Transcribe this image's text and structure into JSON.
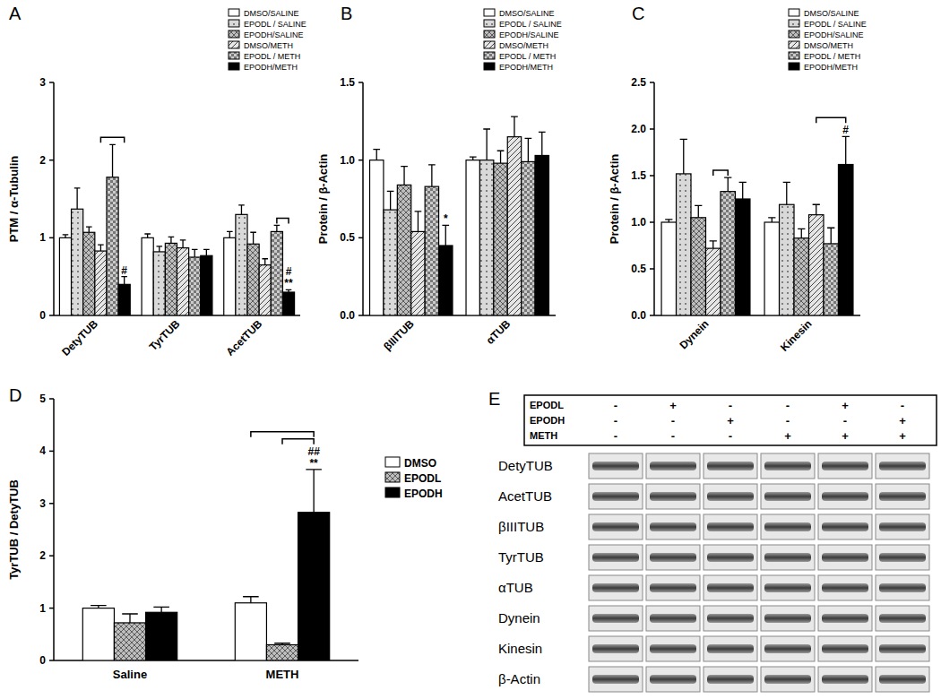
{
  "chart_data": [
    {
      "type": "bar",
      "title": "A",
      "y_label": "PTM / α-Tubulin",
      "categories": [
        "DetyTUB",
        "TyrTUB",
        "AcetTUB"
      ],
      "series": [
        {
          "name": "DMSO/SALINE",
          "color": "#ffffff",
          "values": [
            1.0,
            1.0,
            1.0
          ],
          "errors": [
            0.04,
            0.05,
            0.08
          ]
        },
        {
          "name": "EPODL / SALINE",
          "color": "#d9d9d9",
          "values": [
            1.37,
            0.82,
            1.3
          ],
          "errors": [
            0.27,
            0.07,
            0.12
          ]
        },
        {
          "name": "EPODH/SALINE",
          "color": "#bdbdbd",
          "values": [
            1.07,
            0.93,
            0.92
          ],
          "errors": [
            0.07,
            0.08,
            0.15
          ]
        },
        {
          "name": "DMSO/METH",
          "color": "#e6e6e6",
          "values": [
            0.83,
            0.87,
            0.65
          ],
          "errors": [
            0.08,
            0.1,
            0.08
          ]
        },
        {
          "name": "EPODL / METH",
          "color": "#cccccc",
          "values": [
            1.78,
            0.75,
            1.08
          ],
          "errors": [
            0.42,
            0.1,
            0.08
          ]
        },
        {
          "name": "EPODH/METH",
          "color": "#000000",
          "values": [
            0.4,
            0.77,
            0.3
          ],
          "errors": [
            0.1,
            0.08,
            0.03
          ]
        }
      ],
      "ylim": [
        0,
        3
      ],
      "yticks": [
        0,
        1,
        2,
        3
      ],
      "legend": "upper right",
      "annotations": [
        {
          "text": "#",
          "category": "DetyTUB",
          "series": "EPODH/METH"
        },
        {
          "text": "**",
          "category": "AcetTUB",
          "series": "EPODH/METH"
        },
        {
          "text": "#",
          "category": "AcetTUB",
          "series": "EPODH/METH"
        }
      ],
      "brackets": [
        {
          "category": "DetyTUB",
          "from": "DMSO/METH",
          "to": "EPODH/METH"
        },
        {
          "category": "AcetTUB",
          "from": "EPODL / METH",
          "to": "EPODH/METH"
        }
      ]
    },
    {
      "type": "bar",
      "title": "B",
      "y_label": "Protein / β-Actin",
      "categories": [
        "βIIITUB",
        "αTUB"
      ],
      "series": [
        {
          "name": "DMSO/SALINE",
          "color": "#ffffff",
          "values": [
            1.0,
            1.0
          ],
          "errors": [
            0.07,
            0.02
          ]
        },
        {
          "name": "EPODL / SALINE",
          "color": "#d9d9d9",
          "values": [
            0.68,
            1.0
          ],
          "errors": [
            0.12,
            0.2
          ]
        },
        {
          "name": "EPODH/SALINE",
          "color": "#bdbdbd",
          "values": [
            0.84,
            0.98
          ],
          "errors": [
            0.12,
            0.08
          ]
        },
        {
          "name": "DMSO/METH",
          "color": "#e6e6e6",
          "values": [
            0.54,
            1.15
          ],
          "errors": [
            0.13,
            0.13
          ]
        },
        {
          "name": "EPODL / METH",
          "color": "#cccccc",
          "values": [
            0.83,
            0.99
          ],
          "errors": [
            0.14,
            0.15
          ]
        },
        {
          "name": "EPODH/METH",
          "color": "#000000",
          "values": [
            0.45,
            1.03
          ],
          "errors": [
            0.13,
            0.15
          ]
        }
      ],
      "ylim": [
        0,
        1.5
      ],
      "yticks": [
        {
          "value": 0,
          "label": "0.0"
        },
        0.5,
        {
          "value": 1,
          "label": "1.0"
        },
        1.5
      ],
      "legend": "upper right",
      "annotations": [
        {
          "text": "*",
          "category": "βIIITUB",
          "series": "EPODH/METH"
        }
      ]
    },
    {
      "type": "bar",
      "title": "C",
      "y_label": "Protein / β-Actin",
      "categories": [
        "Dynein",
        "Kinesin"
      ],
      "series": [
        {
          "name": "DMSO/SALINE",
          "color": "#ffffff",
          "values": [
            1.0,
            1.0
          ],
          "errors": [
            0.03,
            0.05
          ]
        },
        {
          "name": "EPODL / SALINE",
          "color": "#d9d9d9",
          "values": [
            1.52,
            1.19
          ],
          "errors": [
            0.37,
            0.24
          ]
        },
        {
          "name": "EPODH/SALINE",
          "color": "#bdbdbd",
          "values": [
            1.05,
            0.83
          ],
          "errors": [
            0.13,
            0.1
          ]
        },
        {
          "name": "DMSO/METH",
          "color": "#e6e6e6",
          "values": [
            0.72,
            1.08
          ],
          "errors": [
            0.08,
            0.11
          ]
        },
        {
          "name": "EPODL / METH",
          "color": "#cccccc",
          "values": [
            1.33,
            0.77
          ],
          "errors": [
            0.15,
            0.17
          ]
        },
        {
          "name": "EPODH/METH",
          "color": "#000000",
          "values": [
            1.25,
            1.62
          ],
          "errors": [
            0.18,
            0.3
          ]
        }
      ],
      "ylim": [
        0,
        2.5
      ],
      "yticks": [
        {
          "value": 0,
          "label": "0.0"
        },
        0.5,
        {
          "value": 1,
          "label": "1.0"
        },
        1.5,
        {
          "value": 2,
          "label": "2.0"
        },
        2.5
      ],
      "legend": "upper right",
      "annotations": [
        {
          "text": "#",
          "category": "Kinesin",
          "series": "EPODH/METH"
        }
      ],
      "brackets": [
        {
          "category": "Dynein",
          "from": "DMSO/METH",
          "to": "EPODL / METH"
        },
        {
          "category": "Kinesin",
          "from": "DMSO/METH",
          "to": "EPODH/METH"
        }
      ]
    },
    {
      "type": "bar",
      "title": "D",
      "y_label": "TyrTUB / DetyTUB",
      "categories": [
        "Saline",
        "METH"
      ],
      "series": [
        {
          "name": "DMSO",
          "color": "#ffffff",
          "values": [
            1.0,
            1.1
          ],
          "errors": [
            0.05,
            0.12
          ]
        },
        {
          "name": "EPODL",
          "color": "#bdbdbd",
          "values": [
            0.72,
            0.3
          ],
          "errors": [
            0.17,
            0.03
          ]
        },
        {
          "name": "EPODH",
          "color": "#000000",
          "values": [
            0.92,
            2.83
          ],
          "errors": [
            0.1,
            0.82
          ]
        }
      ],
      "ylim": [
        0,
        5
      ],
      "yticks": [
        0,
        1,
        2,
        3,
        4,
        5
      ],
      "legend": "right",
      "annotations": [
        {
          "text": "**",
          "category": "METH",
          "series": "EPODH"
        },
        {
          "text": "##",
          "category": "METH",
          "series": "EPODH"
        }
      ],
      "brackets": [
        {
          "category": "METH",
          "from": "EPODL",
          "to": "EPODH"
        },
        {
          "category": "METH",
          "from": "DMSO",
          "to": "EPODH"
        }
      ]
    }
  ],
  "blot": {
    "title": "E",
    "treatments": [
      {
        "name": "EPODL",
        "signs": [
          "-",
          "+",
          "-",
          "-",
          "+",
          "-"
        ]
      },
      {
        "name": "EPODH",
        "signs": [
          "-",
          "-",
          "+",
          "-",
          "-",
          "+"
        ]
      },
      {
        "name": "METH",
        "signs": [
          "-",
          "-",
          "-",
          "+",
          "+",
          "+"
        ]
      }
    ],
    "rows": [
      "DetyTUB",
      "AcetTUB",
      "βIIITUB",
      "TyrTUB",
      "αTUB",
      "Dynein",
      "Kinesin",
      "β-Actin"
    ]
  }
}
